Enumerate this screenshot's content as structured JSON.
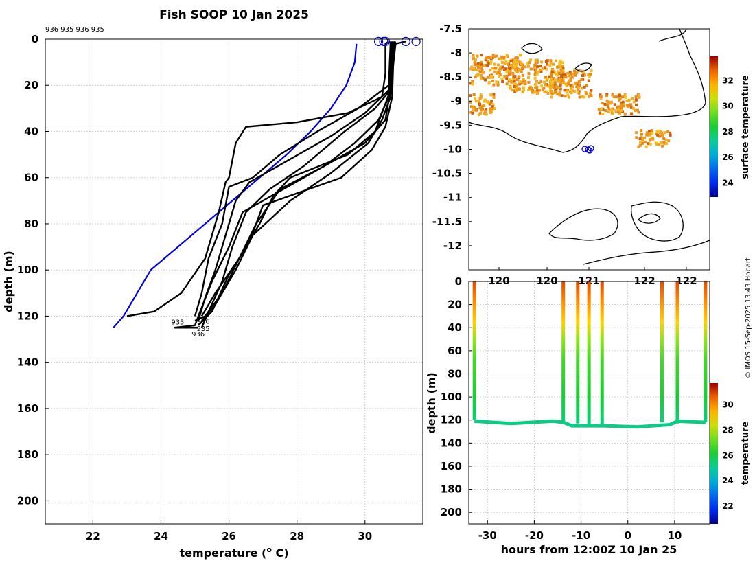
{
  "colors": {
    "profile": "#000000",
    "climatology": "#0000dd",
    "surface_marker": "#0000cc",
    "coast": "#000000"
  },
  "chart_data": [
    {
      "type": "line",
      "name": "temperature-profiles",
      "title": "Fish SOOP 10 Jan 2025",
      "ids_label": "936 935 936 935",
      "xlabel": "temperature (",
      "xlabel_sup": "o",
      "xlabel_end": " C)",
      "ylabel": "depth (m)",
      "xlim": [
        20.6,
        31.7
      ],
      "ylim": [
        0,
        210
      ],
      "xticks": [
        22,
        24,
        26,
        28,
        30
      ],
      "yticks": [
        0,
        20,
        40,
        60,
        80,
        100,
        120,
        140,
        160,
        180,
        200
      ],
      "grid": true,
      "bottom_labels": [
        "935",
        "936",
        "935",
        "936"
      ],
      "climatology": {
        "depth": [
          2,
          10,
          20,
          30,
          40,
          50,
          60,
          75,
          80,
          100,
          110,
          120,
          125
        ],
        "temp": [
          29.75,
          29.7,
          29.45,
          29.0,
          28.4,
          27.7,
          26.9,
          25.7,
          25.3,
          23.7,
          23.3,
          22.9,
          22.6
        ]
      },
      "surface_markers": [
        30.4,
        30.55,
        30.6,
        31.2,
        31.5
      ],
      "profiles": [
        {
          "depth": [
            1,
            2,
            15,
            25,
            32,
            36,
            38,
            45,
            60,
            62,
            75,
            95,
            110,
            118,
            120
          ],
          "temp": [
            30.7,
            30.6,
            30.6,
            30.5,
            29.5,
            28.0,
            26.5,
            26.2,
            26.0,
            25.9,
            25.7,
            25.3,
            24.6,
            23.8,
            23.0
          ]
        },
        {
          "depth": [
            1,
            2,
            20,
            30,
            40,
            50,
            60,
            64,
            80,
            95,
            110,
            120
          ],
          "temp": [
            30.75,
            30.75,
            30.7,
            29.8,
            28.6,
            27.5,
            26.7,
            26.0,
            25.8,
            25.4,
            25.2,
            25.0
          ]
        },
        {
          "depth": [
            1,
            2,
            22,
            32,
            42,
            52,
            62,
            70,
            85,
            100,
            112,
            122
          ],
          "temp": [
            30.8,
            30.8,
            30.7,
            30.0,
            29.0,
            27.8,
            26.6,
            26.2,
            25.9,
            25.6,
            25.3,
            25.1
          ]
        },
        {
          "depth": [
            1,
            2,
            22,
            30,
            40,
            55,
            65,
            75,
            90,
            105,
            118,
            125
          ],
          "temp": [
            30.8,
            30.8,
            30.75,
            30.3,
            29.4,
            28.2,
            27.2,
            26.5,
            26.1,
            25.8,
            25.4,
            25.2
          ]
        },
        {
          "depth": [
            1,
            2,
            25,
            35,
            45,
            55,
            65,
            80,
            95,
            110,
            120,
            122
          ],
          "temp": [
            30.8,
            30.8,
            30.7,
            30.4,
            29.7,
            28.8,
            27.5,
            26.8,
            26.3,
            25.8,
            25.3,
            25.0
          ]
        },
        {
          "depth": [
            1,
            2,
            25,
            35,
            45,
            58,
            70,
            85,
            100,
            115,
            122
          ],
          "temp": [
            30.85,
            30.85,
            30.75,
            30.5,
            30.1,
            29.0,
            27.8,
            26.7,
            26.2,
            25.6,
            25.2
          ]
        },
        {
          "depth": [
            1,
            2,
            25,
            38,
            48,
            60,
            72,
            88,
            102,
            118,
            124
          ],
          "temp": [
            30.85,
            30.85,
            30.8,
            30.6,
            30.2,
            29.3,
            27.0,
            26.6,
            26.0,
            25.5,
            25.1
          ]
        },
        {
          "depth": [
            1,
            2,
            20,
            28,
            40,
            50,
            60,
            68,
            80,
            95,
            110,
            120
          ],
          "temp": [
            30.9,
            30.85,
            30.8,
            30.6,
            30.3,
            29.5,
            27.8,
            27.3,
            26.9,
            26.3,
            25.6,
            25.2
          ]
        },
        {
          "depth": [
            1,
            2,
            22,
            35,
            45,
            55,
            65,
            75,
            90,
            105,
            120,
            124,
            125,
            125
          ],
          "temp": [
            31.2,
            30.9,
            30.75,
            30.6,
            30.0,
            28.8,
            27.6,
            26.4,
            26.0,
            25.5,
            25.1,
            25.0,
            24.4,
            25.1
          ]
        }
      ]
    },
    {
      "type": "heatmap",
      "name": "surface-temperature-map",
      "xticks": [
        "120",
        "120",
        "121",
        "122",
        "122"
      ],
      "yticks": [
        "-7.5",
        "-8",
        "-8.5",
        "-9",
        "-9.5",
        "-10",
        "-10.5",
        "-11",
        "-11.5",
        "-12"
      ],
      "ylim": [
        -12.5,
        -7.5
      ],
      "colorbar_label": "surface temperature",
      "colorbar_ticks": [
        24,
        26,
        28,
        30,
        32
      ],
      "colorbar_range": [
        22.9,
        33.9
      ]
    },
    {
      "type": "heatmap",
      "name": "depth-time-section",
      "xlabel": "hours from 12:00Z 10 Jan 25",
      "ylabel": "depth (m)",
      "xlim": [
        -34,
        17.5
      ],
      "ylim": [
        0,
        210
      ],
      "xticks": [
        -30,
        -20,
        -10,
        0,
        10
      ],
      "yticks": [
        0,
        20,
        40,
        60,
        80,
        100,
        120,
        140,
        160,
        180,
        200
      ],
      "colorbar_label": "temperature",
      "colorbar_ticks": [
        22,
        24,
        26,
        28,
        30
      ],
      "colorbar_range": [
        20.6,
        31.7
      ],
      "casts": [
        {
          "hour": -32.8,
          "bottom": 120
        },
        {
          "hour": -13.8,
          "bottom": 123
        },
        {
          "hour": -10.7,
          "bottom": 123
        },
        {
          "hour": -8.3,
          "bottom": 124
        },
        {
          "hour": -5.5,
          "bottom": 124
        },
        {
          "hour": 7.3,
          "bottom": 122
        },
        {
          "hour": 10.6,
          "bottom": 123
        },
        {
          "hour": 16.6,
          "bottom": 122
        }
      ],
      "bottom_track": [
        [
          -32.8,
          121
        ],
        [
          -25,
          123
        ],
        [
          -16,
          121
        ],
        [
          -13.8,
          122
        ],
        [
          -12,
          125
        ],
        [
          -5,
          125
        ],
        [
          2,
          126
        ],
        [
          9,
          124
        ],
        [
          10.6,
          121
        ],
        [
          16.6,
          122
        ]
      ]
    }
  ],
  "credit": "© IMOS 15-Sep-2025 13:43 Hobart"
}
